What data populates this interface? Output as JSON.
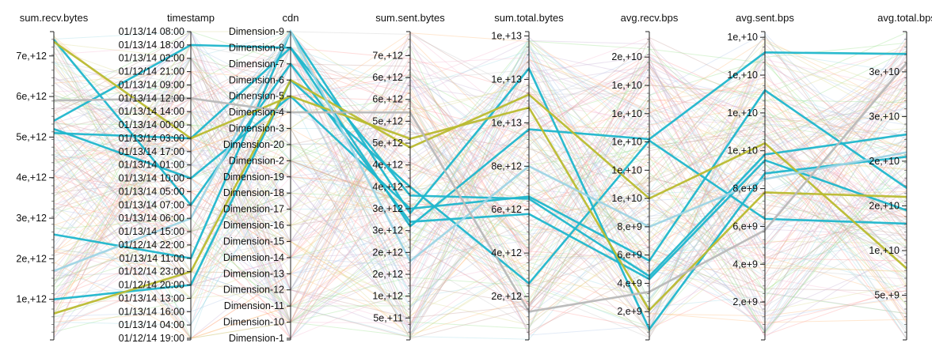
{
  "chart_data": {
    "type": "parallel-coordinates",
    "axes": [
      {
        "key": "sum_recv_bytes",
        "label": "sum.recv.bytes",
        "kind": "numeric",
        "domain": [
          0,
          7600000000000.0
        ],
        "ticks": [
          {
            "v": 1000000000000.0,
            "t": "1e,+12"
          },
          {
            "v": 2000000000000.0,
            "t": "2e,+12"
          },
          {
            "v": 3000000000000.0,
            "t": "3e,+12"
          },
          {
            "v": 4000000000000.0,
            "t": "4e,+12"
          },
          {
            "v": 5000000000000.0,
            "t": "5e,+12"
          },
          {
            "v": 6000000000000.0,
            "t": "6e,+12"
          },
          {
            "v": 7000000000000.0,
            "t": "7e,+12"
          }
        ]
      },
      {
        "key": "timestamp",
        "label": "timestamp",
        "kind": "ordinal",
        "categories": [
          "01/13/14 08:00",
          "01/13/14 18:00",
          "01/13/14 02:00",
          "01/12/14 21:00",
          "01/13/14 09:00",
          "01/13/14 12:00",
          "01/13/14 14:00",
          "01/13/14 00:00",
          "01/13/14 03:00",
          "01/13/14 17:00",
          "01/13/14 01:00",
          "01/13/14 10:00",
          "01/13/14 05:00",
          "01/13/14 07:00",
          "01/13/14 06:00",
          "01/13/14 15:00",
          "01/12/14 22:00",
          "01/13/14 11:00",
          "01/12/14 23:00",
          "01/12/14 20:00",
          "01/13/14 13:00",
          "01/13/14 16:00",
          "01/13/14 04:00",
          "01/12/14 19:00"
        ]
      },
      {
        "key": "cdn",
        "label": "cdn",
        "kind": "ordinal",
        "categories": [
          "Dimension-9",
          "Dimension-8",
          "Dimension-7",
          "Dimension-6",
          "Dimension-5",
          "Dimension-4",
          "Dimension-3",
          "Dimension-20",
          "Dimension-2",
          "Dimension-19",
          "Dimension-18",
          "Dimension-17",
          "Dimension-16",
          "Dimension-15",
          "Dimension-14",
          "Dimension-13",
          "Dimension-12",
          "Dimension-11",
          "Dimension-10",
          "Dimension-1"
        ]
      },
      {
        "key": "sum_sent_bytes",
        "label": "sum.sent.bytes",
        "kind": "numeric",
        "domain": [
          0,
          7050000000000.0
        ],
        "ticks": [
          {
            "v": 500000000000.0,
            "t": "5e,+11"
          },
          {
            "v": 1000000000000.0,
            "t": "1e,+12"
          },
          {
            "v": 1500000000000.0,
            "t": "2e,+12"
          },
          {
            "v": 2000000000000.0,
            "t": "2e,+12"
          },
          {
            "v": 2500000000000.0,
            "t": "3e,+12"
          },
          {
            "v": 3000000000000.0,
            "t": "3e,+12"
          },
          {
            "v": 3500000000000.0,
            "t": "4e,+12"
          },
          {
            "v": 4000000000000.0,
            "t": "4e,+12"
          },
          {
            "v": 4500000000000.0,
            "t": "5e,+12"
          },
          {
            "v": 5000000000000.0,
            "t": "5e,+12"
          },
          {
            "v": 5500000000000.0,
            "t": "6e,+12"
          },
          {
            "v": 6000000000000.0,
            "t": "6e,+12"
          },
          {
            "v": 6500000000000.0,
            "t": "7e,+12"
          }
        ]
      },
      {
        "key": "sum_total_bytes",
        "label": "sum.total.bytes",
        "kind": "numeric",
        "domain": [
          0,
          14200000000000.0
        ],
        "ticks": [
          {
            "v": 2000000000000.0,
            "t": "2e,+12"
          },
          {
            "v": 4000000000000.0,
            "t": "4e,+12"
          },
          {
            "v": 6000000000000.0,
            "t": "6e,+12"
          },
          {
            "v": 8000000000000.0,
            "t": "8e,+12"
          },
          {
            "v": 10000000000000.0,
            "t": "1e,+13"
          },
          {
            "v": 12000000000000.0,
            "t": "1e,+13"
          },
          {
            "v": 14000000000000.0,
            "t": "1e,+13"
          }
        ]
      },
      {
        "key": "avg_recv_bps",
        "label": "avg.recv.bps",
        "kind": "numeric",
        "domain": [
          0,
          21800000000.0
        ],
        "ticks": [
          {
            "v": 2000000000.0,
            "t": "2,e+9"
          },
          {
            "v": 4000000000.0,
            "t": "4,e+9"
          },
          {
            "v": 6000000000.0,
            "t": "6,e+9"
          },
          {
            "v": 8000000000.0,
            "t": "8,e+9"
          },
          {
            "v": 10000000000.0,
            "t": "1e,+10"
          },
          {
            "v": 12000000000.0,
            "t": "1e,+10"
          },
          {
            "v": 14000000000.0,
            "t": "1e,+10"
          },
          {
            "v": 16000000000.0,
            "t": "1e,+10"
          },
          {
            "v": 18000000000.0,
            "t": "1e,+10"
          },
          {
            "v": 20000000000.0,
            "t": "2e,+10"
          }
        ]
      },
      {
        "key": "avg_sent_bps",
        "label": "avg.sent.bps",
        "kind": "numeric",
        "domain": [
          0,
          16300000000.0
        ],
        "ticks": [
          {
            "v": 2000000000.0,
            "t": "2,e+9"
          },
          {
            "v": 4000000000.0,
            "t": "4,e+9"
          },
          {
            "v": 6000000000.0,
            "t": "6,e+9"
          },
          {
            "v": 8000000000.0,
            "t": "8,e+9"
          },
          {
            "v": 10000000000.0,
            "t": "1e,+10"
          },
          {
            "v": 12000000000.0,
            "t": "1e,+10"
          },
          {
            "v": 14000000000.0,
            "t": "1e,+10"
          },
          {
            "v": 16000000000.0,
            "t": "1e,+10"
          }
        ]
      },
      {
        "key": "avg_total_bps",
        "label": "avg.total.bps",
        "kind": "numeric",
        "domain": [
          0,
          34500000000.0
        ],
        "ticks": [
          {
            "v": 5000000000.0,
            "t": "5e,+9"
          },
          {
            "v": 10000000000.0,
            "t": "1e,+10"
          },
          {
            "v": 15000000000.0,
            "t": "2e,+10"
          },
          {
            "v": 20000000000.0,
            "t": "2e,+10"
          },
          {
            "v": 25000000000.0,
            "t": "3e,+10"
          },
          {
            "v": 30000000000.0,
            "t": "3e,+10"
          }
        ]
      }
    ],
    "highlighted": [
      {
        "color": "#1fb6cc",
        "values": [
          5400000000000.0,
          "01/13/14 18:00",
          "Dimension-8",
          2600000000000.0,
          9700000000000.0,
          14200000000.0,
          15200000000.0,
          32000000000.0
        ]
      },
      {
        "color": "#1fb6cc",
        "values": [
          5200000000000.0,
          "01/13/14 10:00",
          "Dimension-5",
          3000000000000.0,
          6600000000000.0,
          5600000000.0,
          13200000000.0,
          17000000000.0
        ]
      },
      {
        "color": "#1fb6cc",
        "values": [
          1000000000000.0,
          "01/12/14 20:00",
          "Dimension-6",
          3500000000000.0,
          2600000000000.0,
          14100000000.0,
          6400000000.0,
          13000000000.0
        ]
      },
      {
        "color": "#1fb6cc",
        "values": [
          2600000000000.0,
          "01/13/14 11:00",
          "Dimension-9",
          2900000000000.0,
          12500000000000.0,
          750000000.0,
          8800000000.0,
          20500000000.0
        ]
      },
      {
        "color": "#1fb6cc",
        "values": [
          5100000000000.0,
          "01/13/14 03:00",
          "Dimension-8",
          3300000000000.0,
          6500000000000.0,
          4500000000.0,
          9800000000.0,
          23000000000.0
        ]
      },
      {
        "color": "#1fb6cc",
        "values": [
          7400000000000.0,
          "01/13/14 07:00",
          "Dimension-7",
          2700000000000.0,
          5800000000000.0,
          4300000000.0,
          9500000000.0,
          14500000000.0
        ]
      },
      {
        "color": "#b9ba2f",
        "values": [
          650000000000.0,
          "01/12/14 23:00",
          "Dimension-6",
          4400000000000.0,
          11300000000000.0,
          10000000000.0,
          10400000000.0,
          8000000000.0
        ]
      },
      {
        "color": "#b9ba2f",
        "values": [
          7350000000000.0,
          "01/13/14 03:00",
          "Dimension-5",
          4600000000000.0,
          10700000000000.0,
          2100000000.0,
          7800000000.0,
          16000000000.0
        ]
      },
      {
        "color": "#9ed4e4",
        "values": [
          1700000000000.0,
          "01/13/14 06:00",
          "Dimension-9",
          1800000000000.0,
          8000000000000.0,
          8000000000.0,
          8500000000.0,
          21000000000.0
        ]
      },
      {
        "color": "#b8b8b8",
        "values": [
          5900000000000.0,
          "01/13/14 12:00",
          "Dimension-4",
          5200000000000.0,
          1300000000000.0,
          3400000000.0,
          5800000000.0,
          31000000000.0
        ]
      }
    ],
    "background_count": 180,
    "background_palette": [
      "#f7b6d2",
      "#aec7e8",
      "#c5b0d5",
      "#ffbb78",
      "#98df8a",
      "#dbdb8d",
      "#c7c7c7",
      "#9edae5",
      "#ff9896",
      "#c49c94"
    ]
  }
}
